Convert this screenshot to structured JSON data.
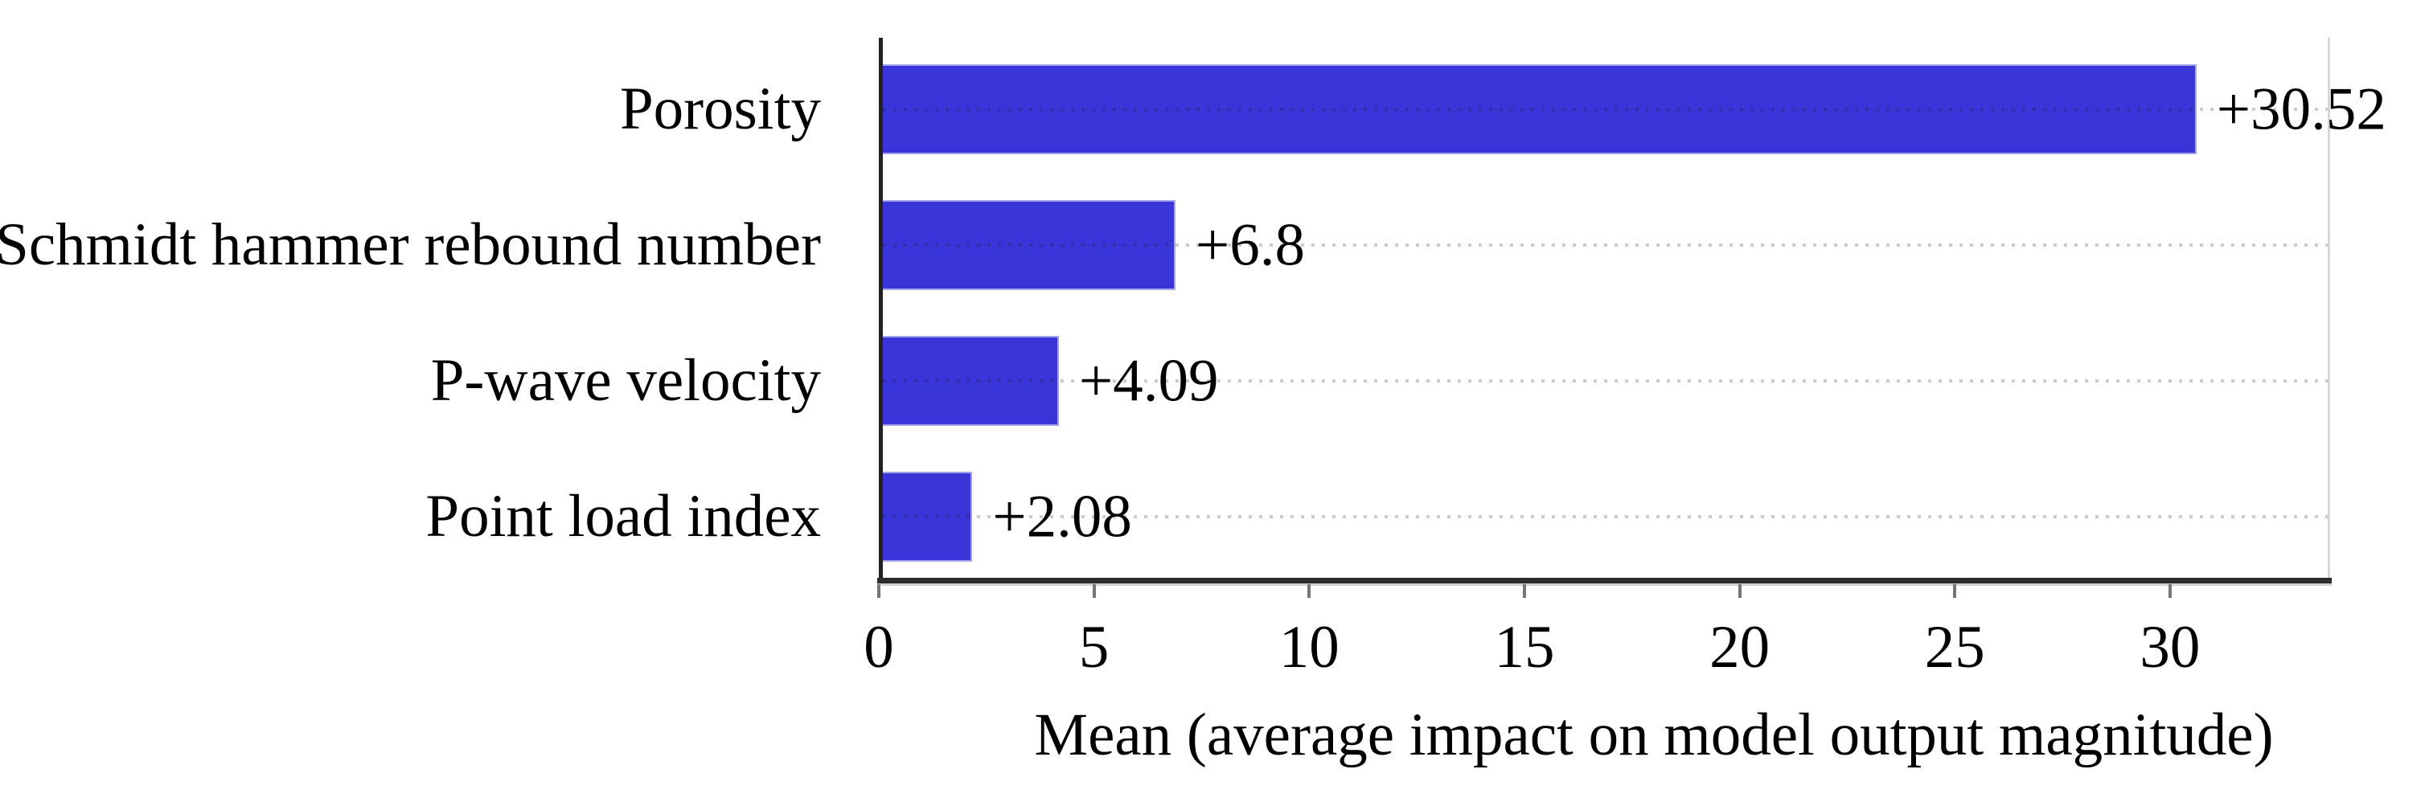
{
  "chart_data": {
    "type": "bar",
    "orientation": "horizontal",
    "title": "",
    "xlabel": "Mean (average impact on model output magnitude)",
    "ylabel": "",
    "categories": [
      "Porosity",
      "Schmidt hammer rebound number",
      "P-wave velocity",
      "Point load index"
    ],
    "values": [
      30.52,
      6.8,
      4.09,
      2.08
    ],
    "bar_value_labels": [
      "+30.52",
      "+6.8",
      "+4.09",
      "+2.08"
    ],
    "x_ticks": [
      "0",
      "5",
      "10",
      "15",
      "20",
      "25",
      "30"
    ],
    "x_tick_values": [
      0,
      5,
      10,
      15,
      20,
      25,
      30
    ],
    "xlim": [
      0,
      33.7
    ],
    "grid": "horizontal dotted line at each category row",
    "legend_position": "none",
    "colors": {
      "bar_fill": "#3a35d8",
      "bar_edge_highlight": "#b9b7ef",
      "axis_line": "#2c2c2c",
      "tick_mark": "#757575",
      "right_spine": "#d6d6d6",
      "gridline": "rgba(20,20,20,0.22)",
      "text": "#000000",
      "background": "#ffffff"
    }
  }
}
